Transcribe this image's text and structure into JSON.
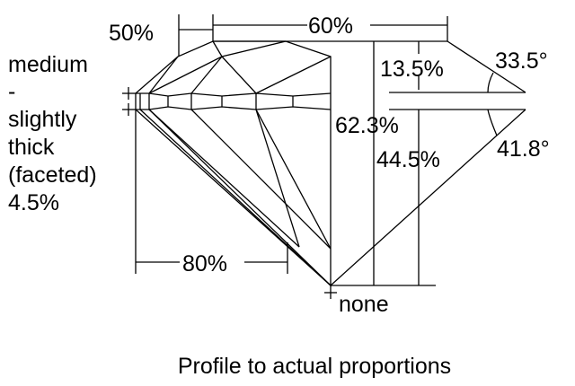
{
  "dimensions": {
    "table": "50%",
    "crown_width": "60%",
    "crown_height": "13.5%",
    "crown_angle": "33.5°",
    "total_depth": "62.3%",
    "pavilion_depth": "44.5%",
    "pavilion_angle": "41.8°",
    "lower_half": "80%",
    "culet": "none"
  },
  "girdle_label": [
    "medium",
    "-",
    "slightly",
    "thick",
    "(faceted)",
    "4.5%"
  ],
  "caption": "Profile to actual proportions"
}
